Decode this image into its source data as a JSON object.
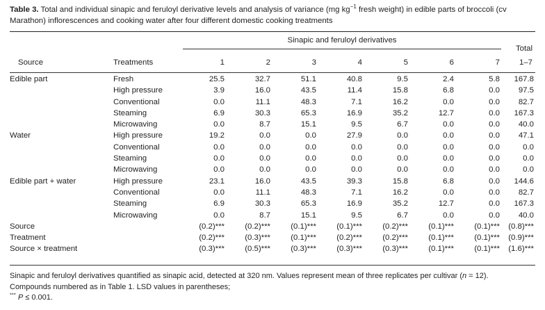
{
  "caption": {
    "label": "Table 3.",
    "text_before": " Total and individual sinapic and feruloyl derivative levels and analysis of variance (mg kg",
    "sup": "−1",
    "text_after": " fresh weight) in edible parts of broccoli (cv Marathon) inflorescences and cooking water after four different domestic cooking treatments"
  },
  "header": {
    "group_label": "Sinapic and feruloyl derivatives",
    "source": "Source",
    "treatments": "Treatments",
    "columns": [
      "1",
      "2",
      "3",
      "4",
      "5",
      "6",
      "7"
    ],
    "total_line1": "Total",
    "total_line2": "1–7"
  },
  "rows": [
    {
      "source": "Edible part",
      "treatment": "Fresh",
      "values": [
        "25.5",
        "32.7",
        "51.1",
        "40.8",
        "9.5",
        "2.4",
        "5.8"
      ],
      "total": "167.8"
    },
    {
      "source": "",
      "treatment": "High pressure",
      "values": [
        "3.9",
        "16.0",
        "43.5",
        "11.4",
        "15.8",
        "6.8",
        "0.0"
      ],
      "total": "97.5"
    },
    {
      "source": "",
      "treatment": "Conventional",
      "values": [
        "0.0",
        "11.1",
        "48.3",
        "7.1",
        "16.2",
        "0.0",
        "0.0"
      ],
      "total": "82.7"
    },
    {
      "source": "",
      "treatment": "Steaming",
      "values": [
        "6.9",
        "30.3",
        "65.3",
        "16.9",
        "35.2",
        "12.7",
        "0.0"
      ],
      "total": "167.3"
    },
    {
      "source": "",
      "treatment": "Microwaving",
      "values": [
        "0.0",
        "8.7",
        "15.1",
        "9.5",
        "6.7",
        "0.0",
        "0.0"
      ],
      "total": "40.0"
    },
    {
      "source": "Water",
      "treatment": "High pressure",
      "values": [
        "19.2",
        "0.0",
        "0.0",
        "27.9",
        "0.0",
        "0.0",
        "0.0"
      ],
      "total": "47.1"
    },
    {
      "source": "",
      "treatment": "Conventional",
      "values": [
        "0.0",
        "0.0",
        "0.0",
        "0.0",
        "0.0",
        "0.0",
        "0.0"
      ],
      "total": "0.0"
    },
    {
      "source": "",
      "treatment": "Steaming",
      "values": [
        "0.0",
        "0.0",
        "0.0",
        "0.0",
        "0.0",
        "0.0",
        "0.0"
      ],
      "total": "0.0"
    },
    {
      "source": "",
      "treatment": "Microwaving",
      "values": [
        "0.0",
        "0.0",
        "0.0",
        "0.0",
        "0.0",
        "0.0",
        "0.0"
      ],
      "total": "0.0"
    },
    {
      "source": "Edible part + water",
      "treatment": "High pressure",
      "values": [
        "23.1",
        "16.0",
        "43.5",
        "39.3",
        "15.8",
        "6.8",
        "0.0"
      ],
      "total": "144.6"
    },
    {
      "source": "",
      "treatment": "Conventional",
      "values": [
        "0.0",
        "11.1",
        "48.3",
        "7.1",
        "16.2",
        "0.0",
        "0.0"
      ],
      "total": "82.7"
    },
    {
      "source": "",
      "treatment": "Steaming",
      "values": [
        "6.9",
        "30.3",
        "65.3",
        "16.9",
        "35.2",
        "12.7",
        "0.0"
      ],
      "total": "167.3"
    },
    {
      "source": "",
      "treatment": "Microwaving",
      "values": [
        "0.0",
        "8.7",
        "15.1",
        "9.5",
        "6.7",
        "0.0",
        "0.0"
      ],
      "total": "40.0"
    },
    {
      "source": "Source",
      "treatment": "",
      "values": [
        "(0.2)***",
        "(0.2)***",
        "(0.1)***",
        "(0.1)***",
        "(0.2)***",
        "(0.1)***",
        "(0.1)***"
      ],
      "total": "(0.8)***"
    },
    {
      "source": "Treatment",
      "treatment": "",
      "values": [
        "(0.2)***",
        "(0.3)***",
        "(0.1)***",
        "(0.2)***",
        "(0.2)***",
        "(0.1)***",
        "(0.1)***"
      ],
      "total": "(0.9)***"
    },
    {
      "source": "Source × treatment",
      "treatment": "",
      "values": [
        "(0.3)***",
        "(0.5)***",
        "(0.3)***",
        "(0.3)***",
        "(0.3)***",
        "(0.1)***",
        "(0.1)***"
      ],
      "total": "(1.6)***"
    }
  ],
  "footnote": {
    "line1_before": "Sinapic and feruloyl derivatives quantified as sinapic acid, detected at 320 nm. Values represent mean of three replicates per cultivar (",
    "line1_n": "n",
    "line1_after": " = 12).",
    "line2": "Compounds numbered as in Table 1. LSD values in parentheses;",
    "line3_sup": "***",
    "line3_p": " P",
    "line3_after": " ≤ 0.001."
  }
}
